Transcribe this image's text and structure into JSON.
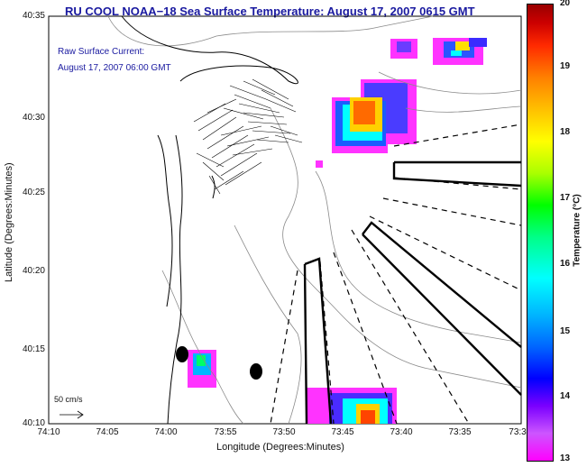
{
  "title": "RU COOL  NOAA−18  Sea Surface Temperature:  August 17, 2007 0615 GMT",
  "subtitle": {
    "line1": "Raw Surface Current:",
    "line2": "August 17, 2007 06:00 GMT"
  },
  "axes": {
    "ylabel": "Latitude (Degrees:Minutes)",
    "xlabel": "Longitude (Degrees:Minutes)",
    "yticks": [
      "40:35",
      "40:30",
      "40:25",
      "40:20",
      "40:15",
      "40:10"
    ],
    "xticks": [
      "74:10",
      "74:05",
      "74:00",
      "73:55",
      "73:50",
      "73:45",
      "73:40",
      "73:35",
      "73:3"
    ]
  },
  "colorbar": {
    "label": "Temperature (°C)",
    "ticks": [
      "20",
      "19",
      "18",
      "17",
      "16",
      "15",
      "14",
      "13"
    ],
    "min": 13,
    "max": 20
  },
  "scale": {
    "label": "50 cm/s"
  },
  "colors": {
    "title": "#1a1aa0",
    "coastline": "#000000",
    "bathymetry": "#8a8a8a"
  }
}
